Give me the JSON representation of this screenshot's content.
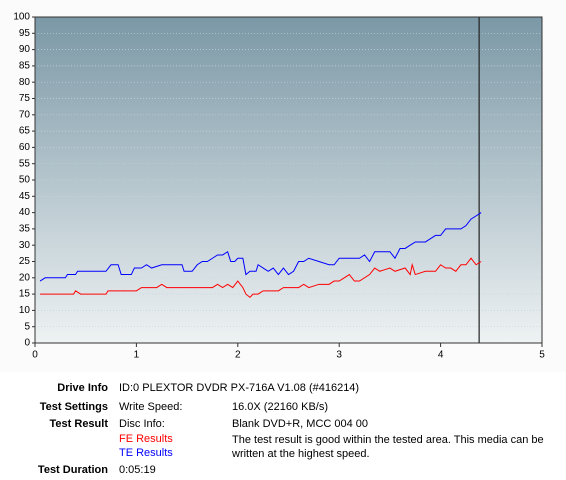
{
  "chart_data": {
    "type": "line",
    "xlim": [
      0,
      5
    ],
    "xticks": [
      0,
      1,
      2,
      3,
      4,
      5
    ],
    "ylim": [
      0,
      100
    ],
    "yticks": [
      0,
      5,
      10,
      15,
      20,
      25,
      30,
      35,
      40,
      45,
      50,
      55,
      60,
      65,
      70,
      75,
      80,
      85,
      90,
      95,
      100
    ],
    "grid": true,
    "marker_x": 4.38,
    "series": [
      {
        "name": "FE Results",
        "color": "#ff0000",
        "x": [
          0.05,
          0.38,
          0.4,
          0.45,
          0.7,
          0.72,
          1.0,
          1.05,
          1.2,
          1.25,
          1.3,
          1.75,
          1.8,
          1.85,
          1.9,
          1.95,
          2.0,
          2.05,
          2.08,
          2.12,
          2.15,
          2.2,
          2.25,
          2.4,
          2.45,
          2.6,
          2.65,
          2.7,
          2.8,
          2.9,
          2.95,
          3.0,
          3.05,
          3.1,
          3.15,
          3.2,
          3.3,
          3.35,
          3.4,
          3.5,
          3.55,
          3.65,
          3.7,
          3.72,
          3.75,
          3.85,
          3.95,
          4.0,
          4.05,
          4.1,
          4.15,
          4.2,
          4.25,
          4.3,
          4.35,
          4.4
        ],
        "values": [
          15,
          15,
          16,
          15,
          15,
          16,
          16,
          17,
          17,
          18,
          17,
          17,
          18,
          17,
          18,
          17,
          19,
          17,
          15,
          14,
          15,
          15,
          16,
          16,
          17,
          17,
          18,
          17,
          18,
          18,
          19,
          19,
          20,
          21,
          19,
          19,
          21,
          23,
          22,
          23,
          22,
          23,
          21,
          24,
          21,
          22,
          22,
          24,
          23,
          23,
          22,
          24,
          24,
          26,
          24,
          25
        ]
      },
      {
        "name": "TE Results",
        "color": "#0000ff",
        "x": [
          0.05,
          0.1,
          0.3,
          0.32,
          0.4,
          0.42,
          0.55,
          0.7,
          0.75,
          0.82,
          0.85,
          0.95,
          0.98,
          1.05,
          1.1,
          1.15,
          1.25,
          1.45,
          1.47,
          1.55,
          1.6,
          1.65,
          1.7,
          1.75,
          1.8,
          1.85,
          1.9,
          1.93,
          1.97,
          2.0,
          2.05,
          2.08,
          2.12,
          2.18,
          2.2,
          2.25,
          2.3,
          2.35,
          2.4,
          2.45,
          2.5,
          2.55,
          2.6,
          2.65,
          2.7,
          2.8,
          2.9,
          2.95,
          3.0,
          3.2,
          3.25,
          3.3,
          3.35,
          3.5,
          3.55,
          3.6,
          3.65,
          3.7,
          3.75,
          3.85,
          3.9,
          3.95,
          4.0,
          4.05,
          4.2,
          4.25,
          4.3,
          4.35,
          4.4
        ],
        "values": [
          19,
          20,
          20,
          21,
          21,
          22,
          22,
          22,
          24,
          24,
          21,
          21,
          23,
          23,
          24,
          23,
          24,
          24,
          22,
          22,
          24,
          25,
          25,
          26,
          27,
          27,
          28,
          25,
          25,
          26,
          26,
          21,
          22,
          22,
          24,
          23,
          22,
          23,
          21,
          23,
          21,
          22,
          25,
          25,
          26,
          25,
          24,
          24,
          26,
          26,
          27,
          25,
          28,
          28,
          26,
          29,
          29,
          30,
          31,
          31,
          32,
          33,
          33,
          35,
          35,
          36,
          38,
          39,
          40
        ]
      }
    ]
  },
  "info": {
    "drive_info_label": "Drive Info",
    "drive_info": "ID:0 PLEXTOR DVDR PX-716A V1.08 (#416214)",
    "test_settings_label": "Test Settings",
    "write_speed_label": "Write Speed:",
    "write_speed": "16.0X (22160 KB/s)",
    "test_result_label": "Test Result",
    "disc_info_label": "Disc Info:",
    "disc_info": "Blank DVD+R, MCC 004 00",
    "result_text": "The test result is good within the tested area. This media can be written at the highest speed.",
    "test_duration_label": "Test Duration",
    "test_duration": "0:05:19"
  }
}
